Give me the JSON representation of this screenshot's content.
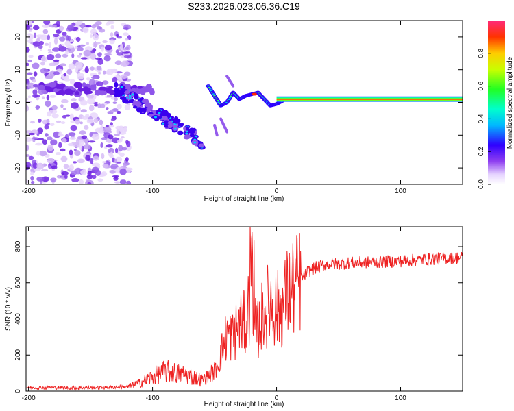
{
  "title": "S233.2026.023.06.36.C19",
  "colors": {
    "snr_line": "#ee2222",
    "spectral_line": "#dd1111"
  },
  "chart_data": [
    {
      "type": "heatmap",
      "name": "spectrogram",
      "xlabel": "Height of straight line (km)",
      "ylabel": "Frequency (Hz)",
      "xlim": [
        -202,
        150
      ],
      "ylim": [
        -25,
        25
      ],
      "xticks": [
        -200,
        -100,
        0,
        100
      ],
      "yticks": [
        20,
        10,
        0,
        -10,
        -20
      ],
      "colorbar": {
        "label": "Normalized spectral amplitude",
        "range": [
          0,
          1
        ],
        "ticks": [
          "0.0",
          "0.2",
          "0.4",
          "0.6",
          "0.8"
        ]
      },
      "features": [
        {
          "description": "diffuse noise",
          "x_range": [
            -202,
            -118
          ],
          "y_range": [
            -25,
            25
          ]
        },
        {
          "description": "descending trace",
          "x": [
            -130,
            -90,
            -60
          ],
          "y": [
            4,
            -5,
            -12
          ]
        },
        {
          "description": "steady carrier",
          "x_range": [
            0,
            150
          ],
          "y": 1
        }
      ]
    },
    {
      "type": "line",
      "name": "snr",
      "xlabel": "Height of straight line (km)",
      "ylabel": "SNR (10 * v/v)",
      "xlim": [
        -202,
        150
      ],
      "ylim": [
        0,
        910
      ],
      "xticks": [
        -200,
        -100,
        0,
        100
      ],
      "yticks": [
        0,
        200,
        400,
        600,
        800
      ],
      "series": [
        {
          "name": "SNR",
          "x": [
            -202,
            -180,
            -160,
            -140,
            -120,
            -110,
            -100,
            -90,
            -80,
            -70,
            -60,
            -50,
            -45,
            -40,
            -35,
            -30,
            -25,
            -22,
            -20,
            -18,
            -15,
            -10,
            -5,
            0,
            5,
            10,
            15,
            20,
            25,
            30,
            40,
            60,
            80,
            100,
            120,
            150
          ],
          "y": [
            20,
            20,
            18,
            20,
            25,
            45,
            80,
            110,
            100,
            85,
            60,
            110,
            200,
            320,
            300,
            380,
            370,
            500,
            900,
            350,
            340,
            450,
            500,
            450,
            470,
            560,
            580,
            620,
            660,
            680,
            700,
            710,
            715,
            720,
            730,
            740
          ]
        }
      ]
    }
  ]
}
